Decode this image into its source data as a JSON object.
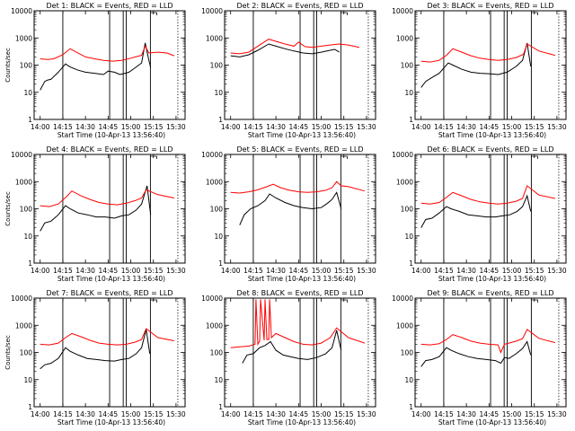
{
  "chart_data": [
    {
      "type": "line",
      "title": "Det 1: BLACK = Events, RED = LLD",
      "ylabel": "Counts/sec",
      "xlabel": "Start Time (10-Apr-13 13:56:40)",
      "ylim": [
        1,
        10000
      ],
      "yscale": "log",
      "y_ticks": [
        "1",
        "10",
        "100",
        "1000",
        "10000"
      ],
      "x_ticks": [
        "14:00",
        "14:15",
        "14:30",
        "14:45",
        "15:00",
        "15:15",
        "15:30"
      ],
      "series": [
        {
          "name": "Events",
          "color": "#000000",
          "x": [
            14.0,
            14.05,
            14.08,
            14.12,
            14.2,
            14.28,
            14.33,
            14.42,
            14.5,
            14.6,
            14.7,
            14.75,
            14.82,
            14.88,
            14.94,
            14.98,
            15.05,
            15.12,
            15.16,
            15.2,
            15.22
          ],
          "y": [
            12,
            25,
            28,
            30,
            55,
            110,
            85,
            65,
            55,
            50,
            45,
            60,
            55,
            45,
            50,
            55,
            80,
            120,
            650,
            150,
            80
          ]
        },
        {
          "name": "LLD",
          "color": "#ff0000",
          "x": [
            14.0,
            14.08,
            14.15,
            14.25,
            14.33,
            14.4,
            14.5,
            14.6,
            14.7,
            14.8,
            14.9,
            15.0,
            15.05,
            15.12,
            15.16,
            15.2,
            15.3,
            15.4,
            15.48
          ],
          "y": [
            170,
            160,
            170,
            240,
            400,
            300,
            200,
            170,
            150,
            140,
            150,
            180,
            200,
            230,
            500,
            280,
            300,
            280,
            220
          ]
        }
      ],
      "vlines": [
        14.25,
        14.767,
        14.917,
        14.95,
        15.217
      ]
    },
    {
      "type": "line",
      "title": "Det 2: BLACK = Events, RED = LLD",
      "ylabel": "",
      "xlabel": "Start Time (10-Apr-13 13:56:40)",
      "ylim": [
        1,
        10000
      ],
      "yscale": "log",
      "y_ticks": [
        "1",
        "10",
        "100",
        "1000",
        "10000"
      ],
      "x_ticks": [
        "14:00",
        "14:15",
        "14:30",
        "14:45",
        "15:00",
        "15:15",
        "15:30"
      ],
      "series": [
        {
          "name": "Events",
          "color": "#000000",
          "x": [
            14.0,
            14.1,
            14.2,
            14.3,
            14.42,
            14.5,
            14.6,
            14.7,
            14.8,
            14.9,
            15.0,
            15.08,
            15.15,
            15.2
          ],
          "y": [
            220,
            200,
            240,
            350,
            600,
            500,
            400,
            330,
            280,
            260,
            300,
            340,
            380,
            300
          ]
        },
        {
          "name": "LLD",
          "color": "#ff0000",
          "x": [
            14.0,
            14.1,
            14.2,
            14.3,
            14.42,
            14.5,
            14.6,
            14.7,
            14.75,
            14.82,
            14.9,
            15.0,
            15.1,
            15.2,
            15.3,
            15.42
          ],
          "y": [
            280,
            260,
            300,
            500,
            900,
            750,
            600,
            500,
            700,
            480,
            450,
            500,
            550,
            600,
            550,
            450
          ]
        }
      ],
      "vlines": [
        14.25,
        14.767,
        14.917,
        14.95,
        15.217
      ]
    },
    {
      "type": "line",
      "title": "Det 3: BLACK = Events, RED = LLD",
      "ylabel": "",
      "xlabel": "Start Time (10-Apr-13 13:56:40)",
      "ylim": [
        1,
        10000
      ],
      "yscale": "log",
      "y_ticks": [
        "1",
        "10",
        "100",
        "1000",
        "10000"
      ],
      "x_ticks": [
        "14:00",
        "14:15",
        "14:30",
        "14:45",
        "15:00",
        "15:15",
        "15:30"
      ],
      "series": [
        {
          "name": "Events",
          "color": "#000000",
          "x": [
            14.0,
            14.05,
            14.12,
            14.2,
            14.3,
            14.35,
            14.45,
            14.55,
            14.65,
            14.75,
            14.85,
            14.95,
            15.05,
            15.12,
            15.17,
            15.21
          ],
          "y": [
            15,
            25,
            35,
            50,
            120,
            100,
            70,
            55,
            50,
            48,
            45,
            55,
            90,
            150,
            650,
            90
          ]
        },
        {
          "name": "LLD",
          "color": "#ff0000",
          "x": [
            14.0,
            14.1,
            14.2,
            14.28,
            14.35,
            14.45,
            14.55,
            14.65,
            14.75,
            14.85,
            14.95,
            15.05,
            15.13,
            15.17,
            15.3,
            15.48
          ],
          "y": [
            140,
            130,
            150,
            230,
            400,
            300,
            220,
            180,
            160,
            150,
            160,
            190,
            250,
            600,
            330,
            230
          ]
        }
      ],
      "vlines": [
        14.25,
        14.767,
        14.917,
        14.95,
        15.217
      ]
    },
    {
      "type": "line",
      "title": "Det 4: BLACK = Events, RED = LLD",
      "ylabel": "Counts/sec",
      "xlabel": "Start Time (10-Apr-13 13:56:40)",
      "ylim": [
        1,
        10000
      ],
      "yscale": "log",
      "y_ticks": [
        "1",
        "10",
        "100",
        "1000",
        "10000"
      ],
      "x_ticks": [
        "14:00",
        "14:15",
        "14:30",
        "14:45",
        "15:00",
        "15:15",
        "15:30"
      ],
      "series": [
        {
          "name": "Events",
          "color": "#000000",
          "x": [
            14.0,
            14.05,
            14.12,
            14.2,
            14.28,
            14.33,
            14.42,
            14.52,
            14.62,
            14.72,
            14.82,
            14.9,
            14.98,
            15.06,
            15.12,
            15.18,
            15.22
          ],
          "y": [
            15,
            30,
            35,
            60,
            130,
            100,
            70,
            60,
            50,
            50,
            45,
            55,
            60,
            90,
            150,
            700,
            60
          ]
        },
        {
          "name": "LLD",
          "color": "#ff0000",
          "x": [
            14.0,
            14.1,
            14.2,
            14.3,
            14.35,
            14.45,
            14.55,
            14.65,
            14.75,
            14.85,
            14.95,
            15.05,
            15.12,
            15.17,
            15.3,
            15.48
          ],
          "y": [
            130,
            120,
            150,
            300,
            450,
            300,
            220,
            170,
            150,
            140,
            160,
            200,
            250,
            500,
            330,
            250
          ]
        }
      ],
      "vlines": [
        14.25,
        14.767,
        14.917,
        14.95,
        15.217
      ]
    },
    {
      "type": "line",
      "title": "Det 5: BLACK = Events, RED = LLD",
      "ylabel": "",
      "xlabel": "Start Time (10-Apr-13 13:56:40)",
      "ylim": [
        1,
        10000
      ],
      "yscale": "log",
      "y_ticks": [
        "1",
        "10",
        "100",
        "1000",
        "10000"
      ],
      "x_ticks": [
        "14:00",
        "14:15",
        "14:30",
        "14:45",
        "15:00",
        "15:15",
        "15:30"
      ],
      "series": [
        {
          "name": "Events",
          "color": "#000000",
          "x": [
            14.1,
            14.15,
            14.22,
            14.3,
            14.38,
            14.43,
            14.5,
            14.6,
            14.7,
            14.8,
            14.9,
            15.0,
            15.07,
            15.12,
            15.17,
            15.22
          ],
          "y": [
            25,
            60,
            100,
            130,
            200,
            350,
            250,
            170,
            130,
            110,
            100,
            110,
            160,
            220,
            400,
            100
          ]
        },
        {
          "name": "LLD",
          "color": "#ff0000",
          "x": [
            14.0,
            14.1,
            14.2,
            14.3,
            14.4,
            14.47,
            14.55,
            14.65,
            14.75,
            14.85,
            14.95,
            15.05,
            15.12,
            15.17,
            15.22,
            15.3,
            15.48
          ],
          "y": [
            400,
            380,
            420,
            500,
            650,
            800,
            600,
            480,
            420,
            400,
            420,
            480,
            600,
            1000,
            700,
            650,
            450
          ]
        }
      ],
      "vlines": [
        14.25,
        14.767,
        14.917,
        14.95,
        15.217
      ]
    },
    {
      "type": "line",
      "title": "Det 6: BLACK = Events, RED = LLD",
      "ylabel": "",
      "xlabel": "Start Time (10-Apr-13 13:56:40)",
      "ylim": [
        1,
        10000
      ],
      "yscale": "log",
      "y_ticks": [
        "1",
        "10",
        "100",
        "1000",
        "10000"
      ],
      "x_ticks": [
        "14:00",
        "14:15",
        "14:30",
        "14:45",
        "15:00",
        "15:15",
        "15:30"
      ],
      "series": [
        {
          "name": "Events",
          "color": "#000000",
          "x": [
            14.0,
            14.05,
            14.12,
            14.2,
            14.28,
            14.33,
            14.42,
            14.52,
            14.62,
            14.72,
            14.82,
            14.9,
            14.98,
            15.06,
            15.12,
            15.17,
            15.21
          ],
          "y": [
            20,
            40,
            45,
            70,
            120,
            100,
            80,
            60,
            55,
            50,
            50,
            55,
            60,
            80,
            120,
            300,
            80
          ]
        },
        {
          "name": "LLD",
          "color": "#ff0000",
          "x": [
            14.0,
            14.1,
            14.2,
            14.28,
            14.35,
            14.45,
            14.55,
            14.65,
            14.75,
            14.85,
            14.95,
            15.05,
            15.12,
            15.17,
            15.3,
            15.48
          ],
          "y": [
            160,
            150,
            170,
            260,
            400,
            300,
            220,
            180,
            160,
            150,
            160,
            190,
            240,
            700,
            320,
            240
          ]
        }
      ],
      "vlines": [
        14.25,
        14.767,
        14.917,
        14.95,
        15.217
      ]
    },
    {
      "type": "line",
      "title": "Det 7: BLACK = Events, RED = LLD",
      "ylabel": "Counts/sec",
      "xlabel": "Start Time (10-Apr-13 13:56:40)",
      "ylim": [
        1,
        10000
      ],
      "yscale": "log",
      "y_ticks": [
        "1",
        "10",
        "100",
        "1000",
        "10000"
      ],
      "x_ticks": [
        "14:00",
        "14:15",
        "14:30",
        "14:45",
        "15:00",
        "15:15",
        "15:30"
      ],
      "series": [
        {
          "name": "Events",
          "color": "#000000",
          "x": [
            14.0,
            14.05,
            14.12,
            14.2,
            14.28,
            14.33,
            14.42,
            14.52,
            14.62,
            14.72,
            14.82,
            14.9,
            14.98,
            15.06,
            15.12,
            15.17,
            15.21
          ],
          "y": [
            25,
            35,
            40,
            60,
            150,
            110,
            80,
            60,
            55,
            50,
            48,
            55,
            60,
            90,
            150,
            700,
            90
          ]
        },
        {
          "name": "LLD",
          "color": "#ff0000",
          "x": [
            14.0,
            14.1,
            14.2,
            14.28,
            14.35,
            14.45,
            14.55,
            14.65,
            14.75,
            14.85,
            14.95,
            15.05,
            15.12,
            15.17,
            15.3,
            15.48
          ],
          "y": [
            200,
            190,
            220,
            350,
            500,
            380,
            280,
            220,
            200,
            190,
            200,
            240,
            300,
            750,
            350,
            270
          ]
        }
      ],
      "vlines": [
        14.25,
        14.767,
        14.917,
        14.95,
        15.217
      ]
    },
    {
      "type": "line",
      "title": "Det 8: BLACK = Events, RED = LLD",
      "ylabel": "",
      "xlabel": "Start Time (10-Apr-13 13:56:40)",
      "ylim": [
        1,
        10000
      ],
      "yscale": "log",
      "y_ticks": [
        "1",
        "10",
        "100",
        "1000",
        "10000"
      ],
      "x_ticks": [
        "14:00",
        "14:15",
        "14:30",
        "14:45",
        "15:00",
        "15:15",
        "15:30"
      ],
      "series": [
        {
          "name": "Events",
          "color": "#000000",
          "x": [
            14.13,
            14.18,
            14.25,
            14.32,
            14.38,
            14.44,
            14.5,
            14.58,
            14.66,
            14.75,
            14.85,
            14.95,
            15.05,
            15.12,
            15.17,
            15.22
          ],
          "y": [
            40,
            80,
            90,
            150,
            180,
            250,
            120,
            80,
            70,
            60,
            55,
            65,
            90,
            150,
            650,
            120
          ]
        },
        {
          "name": "LLD",
          "color": "#ff0000",
          "x": [
            14.0,
            14.1,
            14.2,
            14.27,
            14.28,
            14.3,
            14.32,
            14.33,
            14.37,
            14.38,
            14.4,
            14.42,
            14.43,
            14.45,
            14.5,
            14.6,
            14.7,
            14.8,
            14.9,
            15.0,
            15.1,
            15.17,
            15.3,
            15.48
          ],
          "y": [
            150,
            160,
            170,
            200,
            9000,
            200,
            260,
            9000,
            280,
            9000,
            300,
            300,
            9000,
            350,
            500,
            350,
            250,
            200,
            190,
            220,
            350,
            800,
            350,
            220
          ]
        }
      ],
      "vlines": [
        14.25,
        14.767,
        14.917,
        14.95,
        15.217
      ]
    },
    {
      "type": "line",
      "title": "Det 9: BLACK = Events, RED = LLD",
      "ylabel": "",
      "xlabel": "Start Time (10-Apr-13 13:56:40)",
      "ylim": [
        1,
        10000
      ],
      "yscale": "log",
      "y_ticks": [
        "1",
        "10",
        "100",
        "1000",
        "10000"
      ],
      "x_ticks": [
        "14:00",
        "14:15",
        "14:30",
        "14:45",
        "15:00",
        "15:15",
        "15:30"
      ],
      "series": [
        {
          "name": "Events",
          "color": "#000000",
          "x": [
            14.0,
            14.05,
            14.12,
            14.2,
            14.28,
            14.33,
            14.42,
            14.52,
            14.62,
            14.72,
            14.82,
            14.88,
            14.92,
            14.97,
            15.05,
            15.12,
            15.17,
            15.21
          ],
          "y": [
            30,
            50,
            55,
            70,
            150,
            120,
            90,
            70,
            60,
            55,
            50,
            40,
            65,
            60,
            90,
            140,
            250,
            80
          ]
        },
        {
          "name": "LLD",
          "color": "#ff0000",
          "x": [
            14.0,
            14.1,
            14.2,
            14.28,
            14.35,
            14.45,
            14.55,
            14.65,
            14.75,
            14.85,
            14.88,
            14.92,
            14.97,
            15.05,
            15.12,
            15.17,
            15.3,
            15.48
          ],
          "y": [
            200,
            190,
            210,
            300,
            450,
            350,
            260,
            220,
            200,
            190,
            100,
            200,
            220,
            260,
            320,
            700,
            330,
            230
          ]
        }
      ],
      "vlines": [
        14.25,
        14.767,
        14.917,
        14.95,
        15.217
      ]
    }
  ]
}
